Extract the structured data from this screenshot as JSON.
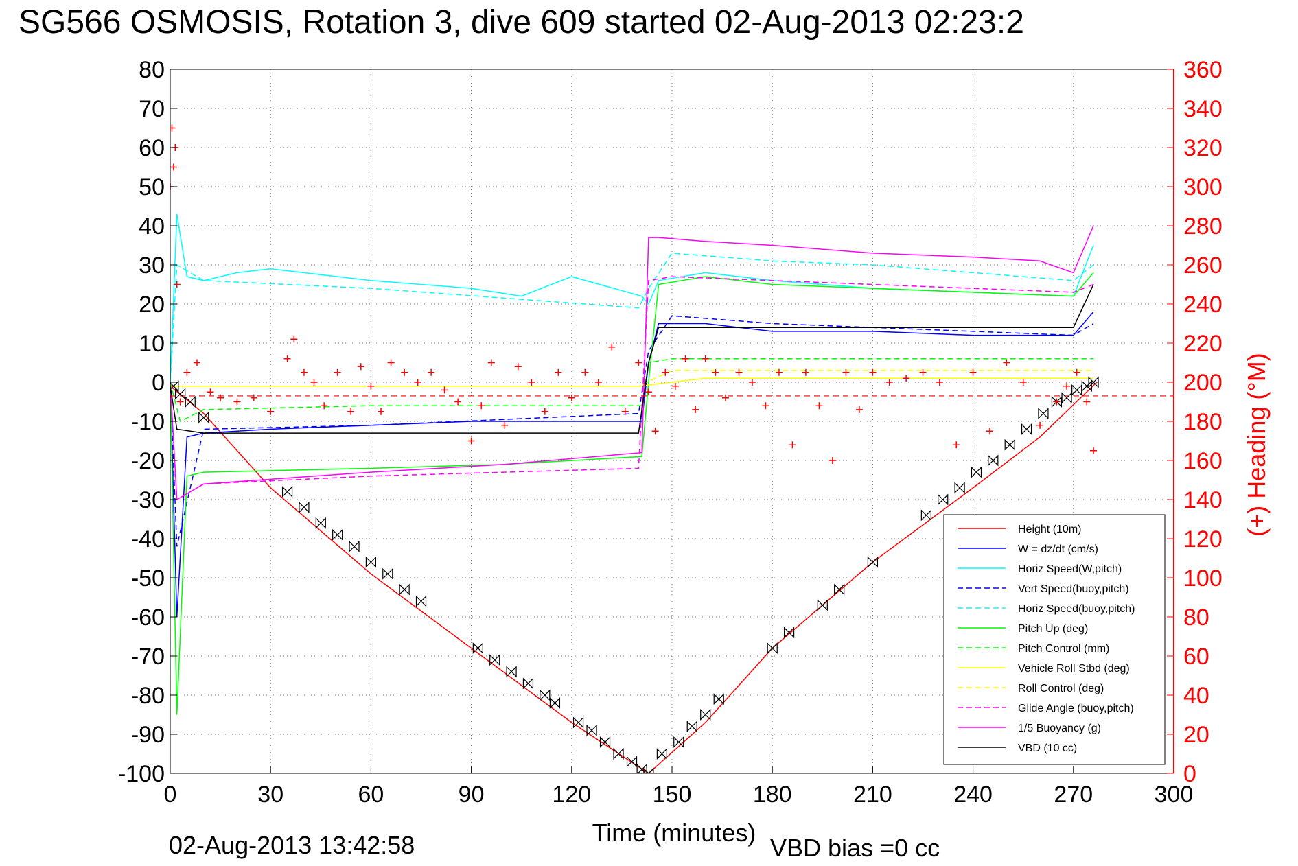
{
  "title": "SG566 OSMOSIS, Rotation 3, dive 609 started 02-Aug-2013 02:23:2",
  "footer": {
    "timestamp": "02-Aug-2013 13:42:58",
    "vbd_bias": "VBD bias =0 cc"
  },
  "colors": {
    "height": "#ff0000",
    "w": "#0000ff",
    "horiz_speed": "#00ffff",
    "vert_speed_buoy": "#0000ff",
    "horiz_speed_buoy": "#00ffff",
    "pitch": "#00ff00",
    "pitch_control": "#00ff00",
    "roll": "#ffff00",
    "roll_control": "#ffff00",
    "glide_angle": "#ff00ff",
    "buoyancy": "#ff00ff",
    "vbd": "#000000",
    "heading": "#ff0000",
    "right_axis": "#ff0000"
  },
  "chart_data": {
    "type": "line",
    "xlabel": "Time (minutes)",
    "ylabel_right": "(+) Heading (°M)",
    "xlim": [
      0,
      300
    ],
    "ylim": [
      -100,
      80
    ],
    "ylim_right": [
      0,
      360
    ],
    "x_ticks": [
      "0",
      "30",
      "60",
      "90",
      "120",
      "150",
      "180",
      "210",
      "240",
      "270",
      "300"
    ],
    "y_ticks": [
      "80",
      "70",
      "60",
      "50",
      "40",
      "30",
      "20",
      "10",
      "0",
      "-10",
      "-20",
      "-30",
      "-40",
      "-50",
      "-60",
      "-70",
      "-80",
      "-90",
      "-100"
    ],
    "y_ticks_right": [
      "360",
      "340",
      "320",
      "300",
      "280",
      "260",
      "240",
      "220",
      "200",
      "180",
      "160",
      "140",
      "120",
      "100",
      "80",
      "60",
      "40",
      "20",
      "0"
    ],
    "grid": true,
    "legend_position": "bottom-right",
    "series": [
      {
        "name": "Height (10m)",
        "style": "solid",
        "x": [
          0,
          10,
          30,
          60,
          90,
          120,
          143,
          160,
          180,
          210,
          240,
          260,
          277
        ],
        "y": [
          -1,
          -8,
          -27,
          -49,
          -68,
          -87,
          -100,
          -87,
          -68,
          -46,
          -27,
          -14,
          0
        ]
      },
      {
        "name": "W = dz/dt (cm/s)",
        "style": "solid",
        "x": [
          0,
          2,
          5,
          10,
          30,
          60,
          90,
          120,
          141,
          143,
          146,
          160,
          180,
          210,
          240,
          270,
          276
        ],
        "y": [
          0,
          -60,
          -14,
          -13,
          -12,
          -11,
          -10,
          -10,
          -10,
          5,
          15,
          15,
          13,
          13,
          12,
          12,
          18
        ]
      },
      {
        "name": "Horiz Speed(W,pitch)",
        "style": "solid",
        "x": [
          0,
          2,
          5,
          10,
          20,
          30,
          60,
          90,
          105,
          120,
          141,
          143,
          146,
          160,
          180,
          210,
          240,
          270,
          276
        ],
        "y": [
          0,
          43,
          27,
          26,
          28,
          29,
          26,
          24,
          22,
          27,
          22,
          20,
          26,
          28,
          26,
          24,
          23,
          22,
          35
        ]
      },
      {
        "name": "Vert Speed(buoy,pitch)",
        "style": "dashed",
        "x": [
          0,
          2,
          10,
          60,
          140,
          143,
          150,
          180,
          210,
          240,
          270,
          276
        ],
        "y": [
          0,
          -42,
          -12,
          -11,
          -8,
          8,
          17,
          15,
          14,
          13,
          12,
          15
        ]
      },
      {
        "name": "Horiz Speed(buoy,pitch)",
        "style": "dashed",
        "x": [
          0,
          2,
          10,
          60,
          140,
          143,
          150,
          180,
          210,
          240,
          270,
          276
        ],
        "y": [
          0,
          30,
          26,
          24,
          19,
          24,
          33,
          31,
          30,
          28,
          26,
          30
        ]
      },
      {
        "name": "Pitch Up (deg)",
        "style": "solid",
        "x": [
          0,
          2,
          5,
          10,
          60,
          100,
          141,
          143,
          146,
          160,
          180,
          210,
          240,
          270,
          276
        ],
        "y": [
          0,
          -85,
          -24,
          -23,
          -22,
          -21,
          -19,
          0,
          25,
          27,
          25,
          24,
          23,
          22,
          28
        ]
      },
      {
        "name": "Pitch Control (mm)",
        "style": "dashed",
        "x": [
          0,
          3,
          10,
          60,
          141,
          143,
          150,
          180,
          210,
          240,
          270,
          276
        ],
        "y": [
          0,
          -10,
          -7,
          -6,
          -6,
          5,
          6,
          6,
          6,
          6,
          6,
          6
        ]
      },
      {
        "name": "Vehicle Roll Stbd (deg)",
        "style": "solid",
        "x": [
          0,
          30,
          60,
          90,
          120,
          140,
          160,
          200,
          240,
          276
        ],
        "y": [
          -1,
          -1,
          -1,
          -1,
          -1,
          -1,
          1,
          1,
          1,
          1
        ]
      },
      {
        "name": "Roll Control (deg)",
        "style": "dashed",
        "x": [
          0,
          60,
          140,
          150,
          210,
          276
        ],
        "y": [
          -1,
          -1,
          -1,
          3,
          3,
          3
        ]
      },
      {
        "name": "Glide Angle (buoy,pitch)",
        "style": "dashed",
        "x": [
          0,
          2,
          10,
          60,
          140,
          143,
          150,
          180,
          210,
          240,
          270,
          276
        ],
        "y": [
          0,
          -30,
          -26,
          -24,
          -22,
          26,
          27,
          26,
          25,
          24,
          23,
          25
        ]
      },
      {
        "name": "1/5 Buoyancy (g)",
        "style": "solid",
        "x": [
          0,
          2,
          10,
          60,
          100,
          141,
          143,
          146,
          160,
          180,
          210,
          240,
          260,
          270,
          276
        ],
        "y": [
          0,
          -30,
          -26,
          -23,
          -21,
          -18,
          37,
          37,
          36,
          35,
          33,
          32,
          31,
          28,
          40
        ]
      },
      {
        "name": "VBD (10 cc)",
        "style": "solid",
        "x": [
          0,
          2,
          10,
          70,
          140,
          143,
          146,
          160,
          165,
          210,
          240,
          270,
          276
        ],
        "y": [
          -1,
          -12,
          -13,
          -13,
          -13,
          5,
          14,
          14,
          14,
          14,
          14,
          14,
          25
        ]
      }
    ],
    "vbd_markers": {
      "x": [
        1,
        3,
        6,
        10,
        35,
        40,
        45,
        50,
        55,
        60,
        65,
        70,
        75,
        92,
        97,
        102,
        107,
        112,
        115,
        122,
        126,
        130,
        134,
        138,
        141,
        143,
        147,
        152,
        156,
        160,
        164,
        180,
        185,
        195,
        200,
        210,
        226,
        231,
        236,
        241,
        246,
        251,
        256,
        261,
        265,
        268,
        271,
        274,
        276
      ],
      "y": [
        -1,
        -3,
        -5,
        -9,
        -28,
        -32,
        -36,
        -39,
        -42,
        -46,
        -49,
        -53,
        -56,
        -68,
        -71,
        -74,
        -77,
        -80,
        -82,
        -87,
        -89,
        -92,
        -95,
        -97,
        -99,
        -100,
        -95,
        -92,
        -88,
        -85,
        -81,
        -68,
        -64,
        -57,
        -53,
        -46,
        -34,
        -30,
        -27,
        -23,
        -20,
        -16,
        -12,
        -8,
        -5,
        -4,
        -2,
        -1,
        0
      ]
    },
    "heading": {
      "marker": "+",
      "x": [
        0,
        0.5,
        1,
        1.5,
        2,
        3,
        5,
        8,
        12,
        15,
        20,
        25,
        30,
        35,
        37,
        40,
        43,
        46,
        50,
        54,
        57,
        60,
        63,
        66,
        70,
        74,
        78,
        82,
        86,
        90,
        93,
        96,
        100,
        104,
        108,
        112,
        116,
        120,
        124,
        128,
        132,
        136,
        140,
        143,
        145,
        148,
        151,
        154,
        157,
        160,
        163,
        166,
        170,
        174,
        178,
        182,
        186,
        190,
        194,
        198,
        202,
        206,
        210,
        215,
        220,
        225,
        230,
        235,
        240,
        245,
        250,
        255,
        260,
        265,
        268,
        271,
        274,
        276
      ],
      "y": [
        300,
        330,
        310,
        320,
        250,
        190,
        205,
        210,
        195,
        192,
        190,
        192,
        185,
        212,
        222,
        205,
        200,
        188,
        205,
        185,
        208,
        198,
        185,
        210,
        205,
        200,
        205,
        196,
        190,
        170,
        188,
        210,
        178,
        208,
        200,
        185,
        205,
        192,
        205,
        200,
        218,
        185,
        210,
        195,
        175,
        205,
        198,
        212,
        186,
        212,
        205,
        192,
        205,
        200,
        188,
        205,
        168,
        205,
        188,
        160,
        205,
        186,
        205,
        200,
        202,
        205,
        200,
        168,
        205,
        175,
        210,
        200,
        178,
        190,
        198,
        205,
        190,
        165
      ]
    },
    "reference_lines": [
      {
        "name": "heading_reference",
        "axis": "right",
        "style": "dashed",
        "color": "#ff0000",
        "value": 193
      }
    ]
  }
}
